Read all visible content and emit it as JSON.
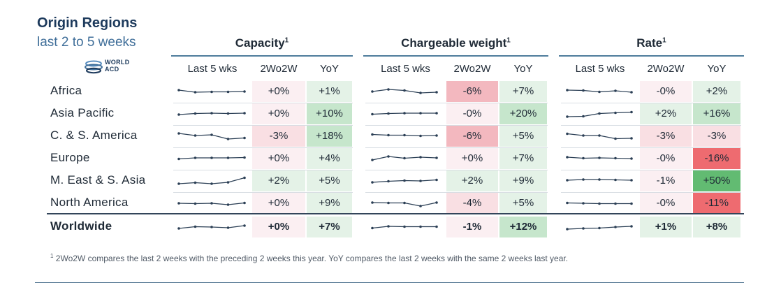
{
  "header": {
    "title": "Origin Regions",
    "subtitle": "last 2 to 5 weeks",
    "logo_line1": "WORLD",
    "logo_line2": "ACD"
  },
  "sections": [
    {
      "title": "Capacity",
      "sup": "1"
    },
    {
      "title": "Chargeable weight",
      "sup": "1"
    },
    {
      "title": "Rate",
      "sup": "1"
    }
  ],
  "columns": {
    "trend": "Last 5 wks",
    "w2w": "2Wo2W",
    "yoy": "YoY"
  },
  "rows": [
    {
      "region": "Africa",
      "capacity": {
        "w2w": "+0%",
        "yoy": "+1%",
        "trend": [
          0.7,
          0.4,
          0.45,
          0.45,
          0.5
        ]
      },
      "weight": {
        "w2w": "-6%",
        "yoy": "+7%",
        "trend": [
          0.5,
          0.8,
          0.65,
          0.3,
          0.4
        ]
      },
      "rate": {
        "w2w": "-0%",
        "yoy": "+2%",
        "trend": [
          0.7,
          0.65,
          0.45,
          0.6,
          0.4
        ]
      }
    },
    {
      "region": "Asia Pacific",
      "capacity": {
        "w2w": "+0%",
        "yoy": "+10%",
        "trend": [
          0.4,
          0.55,
          0.6,
          0.55,
          0.6
        ]
      },
      "weight": {
        "w2w": "-0%",
        "yoy": "+20%",
        "trend": [
          0.45,
          0.55,
          0.6,
          0.6,
          0.6
        ]
      },
      "rate": {
        "w2w": "+2%",
        "yoy": "+16%",
        "trend": [
          0.1,
          0.15,
          0.55,
          0.65,
          0.75
        ]
      }
    },
    {
      "region": "C. & S. America",
      "capacity": {
        "w2w": "-3%",
        "yoy": "+18%",
        "trend": [
          0.9,
          0.6,
          0.7,
          0.1,
          0.25
        ]
      },
      "weight": {
        "w2w": "-6%",
        "yoy": "+5%",
        "trend": [
          0.75,
          0.65,
          0.65,
          0.55,
          0.6
        ]
      },
      "rate": {
        "w2w": "-3%",
        "yoy": "-3%",
        "trend": [
          0.85,
          0.6,
          0.6,
          0.15,
          0.2
        ]
      }
    },
    {
      "region": "Europe",
      "capacity": {
        "w2w": "+0%",
        "yoy": "+4%",
        "trend": [
          0.45,
          0.6,
          0.6,
          0.6,
          0.65
        ]
      },
      "weight": {
        "w2w": "+0%",
        "yoy": "+7%",
        "trend": [
          0.3,
          0.8,
          0.55,
          0.7,
          0.6
        ]
      },
      "rate": {
        "w2w": "-0%",
        "yoy": "-16%",
        "trend": [
          0.7,
          0.55,
          0.6,
          0.55,
          0.5
        ]
      }
    },
    {
      "region": "M. East & S. Asia",
      "capacity": {
        "w2w": "+2%",
        "yoy": "+5%",
        "trend": [
          0.1,
          0.25,
          0.1,
          0.3,
          0.95
        ]
      },
      "weight": {
        "w2w": "+2%",
        "yoy": "+9%",
        "trend": [
          0.3,
          0.45,
          0.55,
          0.5,
          0.65
        ]
      },
      "rate": {
        "w2w": "-1%",
        "yoy": "+50%",
        "trend": [
          0.6,
          0.7,
          0.7,
          0.65,
          0.6
        ]
      }
    },
    {
      "region": "North America",
      "capacity": {
        "w2w": "+0%",
        "yoy": "+9%",
        "trend": [
          0.5,
          0.45,
          0.5,
          0.3,
          0.55
        ]
      },
      "weight": {
        "w2w": "-4%",
        "yoy": "+5%",
        "trend": [
          0.6,
          0.55,
          0.55,
          0.1,
          0.6
        ]
      },
      "rate": {
        "w2w": "-0%",
        "yoy": "-11%",
        "trend": [
          0.55,
          0.5,
          0.45,
          0.45,
          0.45
        ]
      }
    }
  ],
  "worldwide": {
    "region": "Worldwide",
    "capacity": {
      "w2w": "+0%",
      "yoy": "+7%",
      "trend": [
        0.3,
        0.55,
        0.5,
        0.4,
        0.7
      ]
    },
    "weight": {
      "w2w": "-1%",
      "yoy": "+12%",
      "trend": [
        0.35,
        0.6,
        0.55,
        0.55,
        0.55
      ]
    },
    "rate": {
      "w2w": "+1%",
      "yoy": "+8%",
      "trend": [
        0.2,
        0.3,
        0.35,
        0.5,
        0.6
      ]
    }
  },
  "footnote_sup": "1",
  "footnote": "2Wo2W compares the last 2 weeks with the preceding 2 weeks this year. YoY compares the last 2 weeks with the same 2 weeks last year.",
  "colors": {
    "neutral": "#fbeff2",
    "pos_light": "#e4f2e7",
    "pos_mid": "#c6e6cc",
    "neg_light": "#f9dfe3",
    "neg_mid": "#f3b8bf",
    "neg_strong": "#ee6b70",
    "pos_strong": "#62bb72",
    "spark": "#2b3f55"
  }
}
